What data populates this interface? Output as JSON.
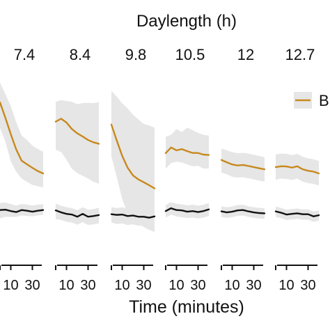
{
  "chart_data": {
    "type": "line",
    "title": "Daylength (h)",
    "xlabel": "Time (minutes)",
    "ylabel": "",
    "x_ticks": [
      10,
      30
    ],
    "xlim": [
      0,
      40
    ],
    "ylim": [
      0,
      1
    ],
    "grid": false,
    "legend": {
      "entries": [
        "B"
      ],
      "placement": "right",
      "colors": [
        "#C8891D"
      ]
    },
    "colors": {
      "orange": "#C8891D",
      "black": "#111111",
      "band": "#E6E6E6"
    },
    "facets": [
      {
        "label": "7.4",
        "x": [
          0,
          5,
          10,
          15,
          20,
          25,
          30,
          35,
          40
        ],
        "series": [
          {
            "name": "",
            "color": "#C8891D",
            "values": [
              0.87,
              0.777,
              0.679,
              0.588,
              0.52,
              0.498,
              0.477,
              0.457,
              0.443
            ],
            "band": [
              [
                0.717,
                0.989
              ],
              [
                0.634,
                0.919
              ],
              [
                0.515,
                0.848
              ],
              [
                0.454,
                0.751
              ],
              [
                0.412,
                0.671
              ],
              [
                0.393,
                0.644
              ],
              [
                0.374,
                0.61
              ],
              [
                0.366,
                0.59
              ],
              [
                0.36,
                0.574
              ]
            ]
          },
          {
            "name": "",
            "color": "#111111",
            "values": [
              0.223,
              0.225,
              0.217,
              0.211,
              0.223,
              0.219,
              0.213,
              0.219,
              0.223
            ],
            "band": [
              [
                0.173,
                0.266
              ],
              [
                0.182,
                0.268
              ],
              [
                0.182,
                0.259
              ],
              [
                0.182,
                0.25
              ],
              [
                0.191,
                0.259
              ],
              [
                0.187,
                0.257
              ],
              [
                0.185,
                0.25
              ],
              [
                0.191,
                0.255
              ],
              [
                0.194,
                0.259
              ]
            ]
          }
        ]
      },
      {
        "label": "8.4",
        "x": [
          0,
          5,
          10,
          15,
          20,
          25,
          30,
          35,
          40
        ],
        "series": [
          {
            "name": "",
            "color": "#C8891D",
            "values": [
              0.754,
              0.772,
              0.749,
              0.71,
              0.684,
              0.665,
              0.644,
              0.63,
              0.621
            ],
            "band": [
              [
                0.585,
                0.874
              ],
              [
                0.572,
                0.884
              ],
              [
                0.526,
                0.878
              ],
              [
                0.471,
                0.874
              ],
              [
                0.445,
                0.859
              ],
              [
                0.429,
                0.866
              ],
              [
                0.412,
                0.867
              ],
              [
                0.393,
                0.866
              ],
              [
                0.381,
                0.871
              ]
            ]
          },
          {
            "name": "",
            "color": "#111111",
            "values": [
              0.221,
              0.209,
              0.2,
              0.196,
              0.183,
              0.2,
              0.183,
              0.187,
              0.193
            ],
            "band": [
              [
                0.169,
                0.261
              ],
              [
                0.163,
                0.249
              ],
              [
                0.152,
                0.24
              ],
              [
                0.148,
                0.235
              ],
              [
                0.135,
                0.222
              ],
              [
                0.15,
                0.24
              ],
              [
                0.133,
                0.225
              ],
              [
                0.137,
                0.229
              ],
              [
                0.143,
                0.237
              ]
            ]
          }
        ]
      },
      {
        "label": "9.8",
        "x": [
          0,
          5,
          10,
          15,
          20,
          25,
          30,
          35,
          40
        ],
        "series": [
          {
            "name": "",
            "color": "#C8891D",
            "values": [
              0.737,
              0.64,
              0.549,
              0.478,
              0.431,
              0.407,
              0.39,
              0.372,
              0.353
            ],
            "band": [
              [
                0.546,
                0.939
              ],
              [
                0.42,
                0.905
              ],
              [
                0.29,
                0.864
              ],
              [
                0.202,
                0.834
              ],
              [
                0.156,
                0.796
              ],
              [
                0.143,
                0.768
              ],
              [
                0.121,
                0.74
              ],
              [
                0.104,
                0.731
              ],
              [
                0.091,
                0.718
              ]
            ]
          },
          {
            "name": "",
            "color": "#111111",
            "values": [
              0.198,
              0.194,
              0.196,
              0.187,
              0.19,
              0.183,
              0.183,
              0.177,
              0.185
            ],
            "band": [
              [
                0.148,
                0.24
              ],
              [
                0.139,
                0.235
              ],
              [
                0.143,
                0.24
              ],
              [
                0.133,
                0.231
              ],
              [
                0.137,
                0.235
              ],
              [
                0.129,
                0.227
              ],
              [
                0.131,
                0.225
              ],
              [
                0.123,
                0.22
              ],
              [
                0.133,
                0.229
              ]
            ]
          }
        ]
      },
      {
        "label": "10.5",
        "x": [
          0,
          5,
          10,
          15,
          20,
          25,
          30,
          35,
          40
        ],
        "series": [
          {
            "name": "",
            "color": "#C8891D",
            "values": [
              0.565,
              0.599,
              0.582,
              0.589,
              0.577,
              0.566,
              0.566,
              0.556,
              0.554
            ],
            "band": [
              [
                0.472,
                0.663
              ],
              [
                0.505,
                0.675
              ],
              [
                0.514,
                0.709
              ],
              [
                0.509,
                0.692
              ],
              [
                0.497,
                0.718
              ],
              [
                0.486,
                0.703
              ],
              [
                0.489,
                0.687
              ],
              [
                0.473,
                0.675
              ],
              [
                0.473,
                0.671
              ]
            ]
          },
          {
            "name": "",
            "color": "#111111",
            "values": [
              0.217,
              0.234,
              0.223,
              0.221,
              0.213,
              0.217,
              0.211,
              0.217,
              0.227
            ],
            "band": [
              [
                0.178,
                0.253
              ],
              [
                0.195,
                0.27
              ],
              [
                0.184,
                0.261
              ],
              [
                0.18,
                0.257
              ],
              [
                0.174,
                0.251
              ],
              [
                0.178,
                0.255
              ],
              [
                0.172,
                0.249
              ],
              [
                0.178,
                0.255
              ],
              [
                0.188,
                0.265
              ]
            ]
          }
        ]
      },
      {
        "label": "12",
        "x": [
          0,
          5,
          10,
          15,
          20,
          25,
          30,
          35,
          40
        ],
        "series": [
          {
            "name": "",
            "color": "#C8891D",
            "values": [
              0.524,
              0.51,
              0.497,
              0.491,
              0.494,
              0.488,
              0.481,
              0.474,
              0.468
            ],
            "band": [
              [
                0.448,
                0.592
              ],
              [
                0.438,
                0.582
              ],
              [
                0.423,
                0.571
              ],
              [
                0.418,
                0.565
              ],
              [
                0.42,
                0.567
              ],
              [
                0.414,
                0.562
              ],
              [
                0.407,
                0.555
              ],
              [
                0.4,
                0.548
              ],
              [
                0.394,
                0.541
              ]
            ]
          },
          {
            "name": "",
            "color": "#111111",
            "values": [
              0.215,
              0.209,
              0.213,
              0.221,
              0.223,
              0.215,
              0.209,
              0.205,
              0.203
            ],
            "band": [
              [
                0.182,
                0.246
              ],
              [
                0.176,
                0.24
              ],
              [
                0.18,
                0.244
              ],
              [
                0.188,
                0.253
              ],
              [
                0.19,
                0.255
              ],
              [
                0.182,
                0.246
              ],
              [
                0.176,
                0.24
              ],
              [
                0.172,
                0.236
              ],
              [
                0.17,
                0.234
              ]
            ]
          }
        ]
      },
      {
        "label": "12.7",
        "x": [
          0,
          5,
          10,
          15,
          20,
          25,
          30,
          35,
          40
        ],
        "series": [
          {
            "name": "",
            "color": "#C8891D",
            "values": [
              0.481,
              0.486,
              0.485,
              0.478,
              0.486,
              0.468,
              0.459,
              0.454,
              0.443
            ],
            "band": [
              [
                0.406,
                0.557
              ],
              [
                0.412,
                0.563
              ],
              [
                0.41,
                0.561
              ],
              [
                0.404,
                0.553
              ],
              [
                0.412,
                0.561
              ],
              [
                0.394,
                0.543
              ],
              [
                0.385,
                0.534
              ],
              [
                0.381,
                0.528
              ],
              [
                0.37,
                0.518
              ]
            ]
          },
          {
            "name": "",
            "color": "#111111",
            "values": [
              0.215,
              0.207,
              0.196,
              0.2,
              0.203,
              0.198,
              0.198,
              0.185,
              0.192
            ],
            "band": [
              [
                0.182,
                0.244
              ],
              [
                0.174,
                0.236
              ],
              [
                0.163,
                0.225
              ],
              [
                0.167,
                0.229
              ],
              [
                0.17,
                0.232
              ],
              [
                0.165,
                0.227
              ],
              [
                0.165,
                0.227
              ],
              [
                0.152,
                0.214
              ],
              [
                0.159,
                0.22
              ]
            ]
          }
        ]
      }
    ]
  }
}
